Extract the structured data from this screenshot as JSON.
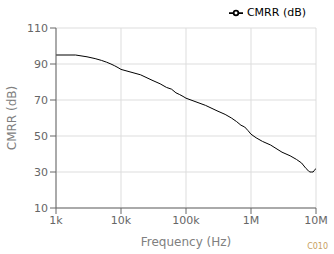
{
  "chart_data": {
    "type": "line",
    "xlabel": "Frequency (Hz)",
    "ylabel": "CMRR (dB)",
    "log": "x",
    "grid": true,
    "legend": "upper right",
    "xlim": [
      1000,
      10000000
    ],
    "ylim": [
      10,
      110
    ],
    "xticks": [
      {
        "value": 1000,
        "label": "1k"
      },
      {
        "value": 10000,
        "label": "10k"
      },
      {
        "value": 100000,
        "label": "100k"
      },
      {
        "value": 1000000,
        "label": "1M"
      },
      {
        "value": 10000000,
        "label": "10M"
      }
    ],
    "yticks": [
      10,
      30,
      50,
      70,
      90,
      110
    ],
    "x": [
      1000,
      2000,
      3000,
      4000,
      5000,
      6000,
      7000,
      8000,
      9000,
      10000,
      20000,
      30000,
      40000,
      50000,
      60000,
      70000,
      80000,
      90000,
      100000,
      200000,
      300000,
      400000,
      500000,
      600000,
      700000,
      800000,
      900000,
      1000000,
      1200000,
      1500000,
      2000000,
      3000000,
      4000000,
      5000000,
      6000000,
      7000000,
      7500000,
      8000000,
      8500000,
      9000000,
      9500000,
      10000000
    ],
    "series": [
      {
        "name": "CMRR (dB)",
        "color": "#000000",
        "values": [
          95,
          95,
          94,
          93,
          92,
          91,
          90,
          89,
          88,
          87,
          84,
          81,
          79,
          77,
          76,
          74,
          73,
          72,
          71,
          67,
          64,
          62,
          60,
          58,
          56,
          55,
          53,
          51,
          49,
          47,
          45,
          41,
          39,
          37,
          35,
          32,
          31,
          30,
          30,
          30,
          31,
          32
        ]
      }
    ],
    "annotations": [
      {
        "text": "C010",
        "color": "#c8a060"
      }
    ]
  }
}
